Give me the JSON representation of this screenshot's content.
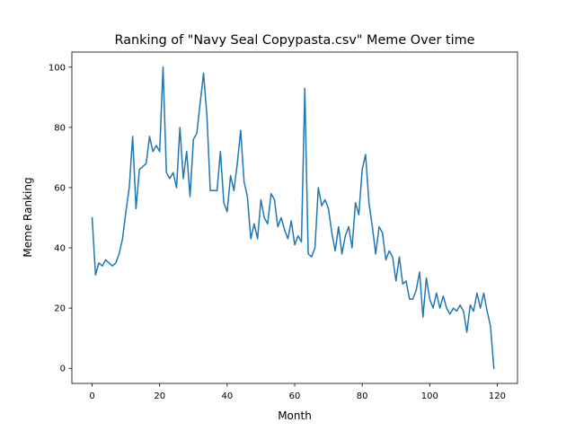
{
  "chart_data": {
    "type": "line",
    "title": "Ranking of \"Navy Seal Copypasta.csv\" Meme Over time",
    "xlabel": "Month",
    "ylabel": "Meme Ranking",
    "xlim": [
      -6,
      126
    ],
    "ylim": [
      -5,
      105
    ],
    "xticks": [
      0,
      20,
      40,
      60,
      80,
      100,
      120
    ],
    "yticks": [
      0,
      20,
      40,
      60,
      80,
      100
    ],
    "grid": false,
    "line_color": "#1f77b4",
    "x": [
      0,
      1,
      2,
      3,
      4,
      5,
      6,
      7,
      8,
      9,
      10,
      11,
      12,
      13,
      14,
      15,
      16,
      17,
      18,
      19,
      20,
      21,
      22,
      23,
      24,
      25,
      26,
      27,
      28,
      29,
      30,
      31,
      32,
      33,
      34,
      35,
      36,
      37,
      38,
      39,
      40,
      41,
      42,
      43,
      44,
      45,
      46,
      47,
      48,
      49,
      50,
      51,
      52,
      53,
      54,
      55,
      56,
      57,
      58,
      59,
      60,
      61,
      62,
      63,
      64,
      65,
      66,
      67,
      68,
      69,
      70,
      71,
      72,
      73,
      74,
      75,
      76,
      77,
      78,
      79,
      80,
      81,
      82,
      83,
      84,
      85,
      86,
      87,
      88,
      89,
      90,
      91,
      92,
      93,
      94,
      95,
      96,
      97,
      98,
      99,
      100,
      101,
      102,
      103,
      104,
      105,
      106,
      107,
      108,
      109,
      110,
      111,
      112,
      113,
      114,
      115,
      116,
      117,
      118,
      119
    ],
    "series": [
      {
        "values": [
          50,
          31,
          35,
          34,
          36,
          35,
          34,
          35,
          38,
          43,
          52,
          60,
          77,
          53,
          66,
          67,
          68,
          77,
          72,
          74,
          72,
          100,
          65,
          63,
          65,
          60,
          80,
          63,
          72,
          57,
          76,
          78,
          88,
          98,
          84,
          59,
          59,
          59,
          72,
          55,
          52,
          64,
          59,
          68,
          79,
          62,
          57,
          43,
          48,
          43,
          56,
          50,
          48,
          58,
          56,
          47,
          50,
          46,
          43,
          49,
          41,
          44,
          42,
          93,
          38,
          37,
          40,
          60,
          54,
          56,
          53,
          45,
          39,
          47,
          38,
          44,
          47,
          40,
          55,
          51,
          66,
          71,
          55,
          47,
          38,
          47,
          45,
          36,
          39,
          37,
          29,
          37,
          28,
          29,
          23,
          23,
          26,
          32,
          17,
          30,
          23,
          20,
          25,
          20,
          24,
          20,
          18,
          20,
          19,
          21,
          19,
          12,
          21,
          19,
          25,
          20,
          25,
          19,
          14,
          0
        ]
      }
    ]
  }
}
